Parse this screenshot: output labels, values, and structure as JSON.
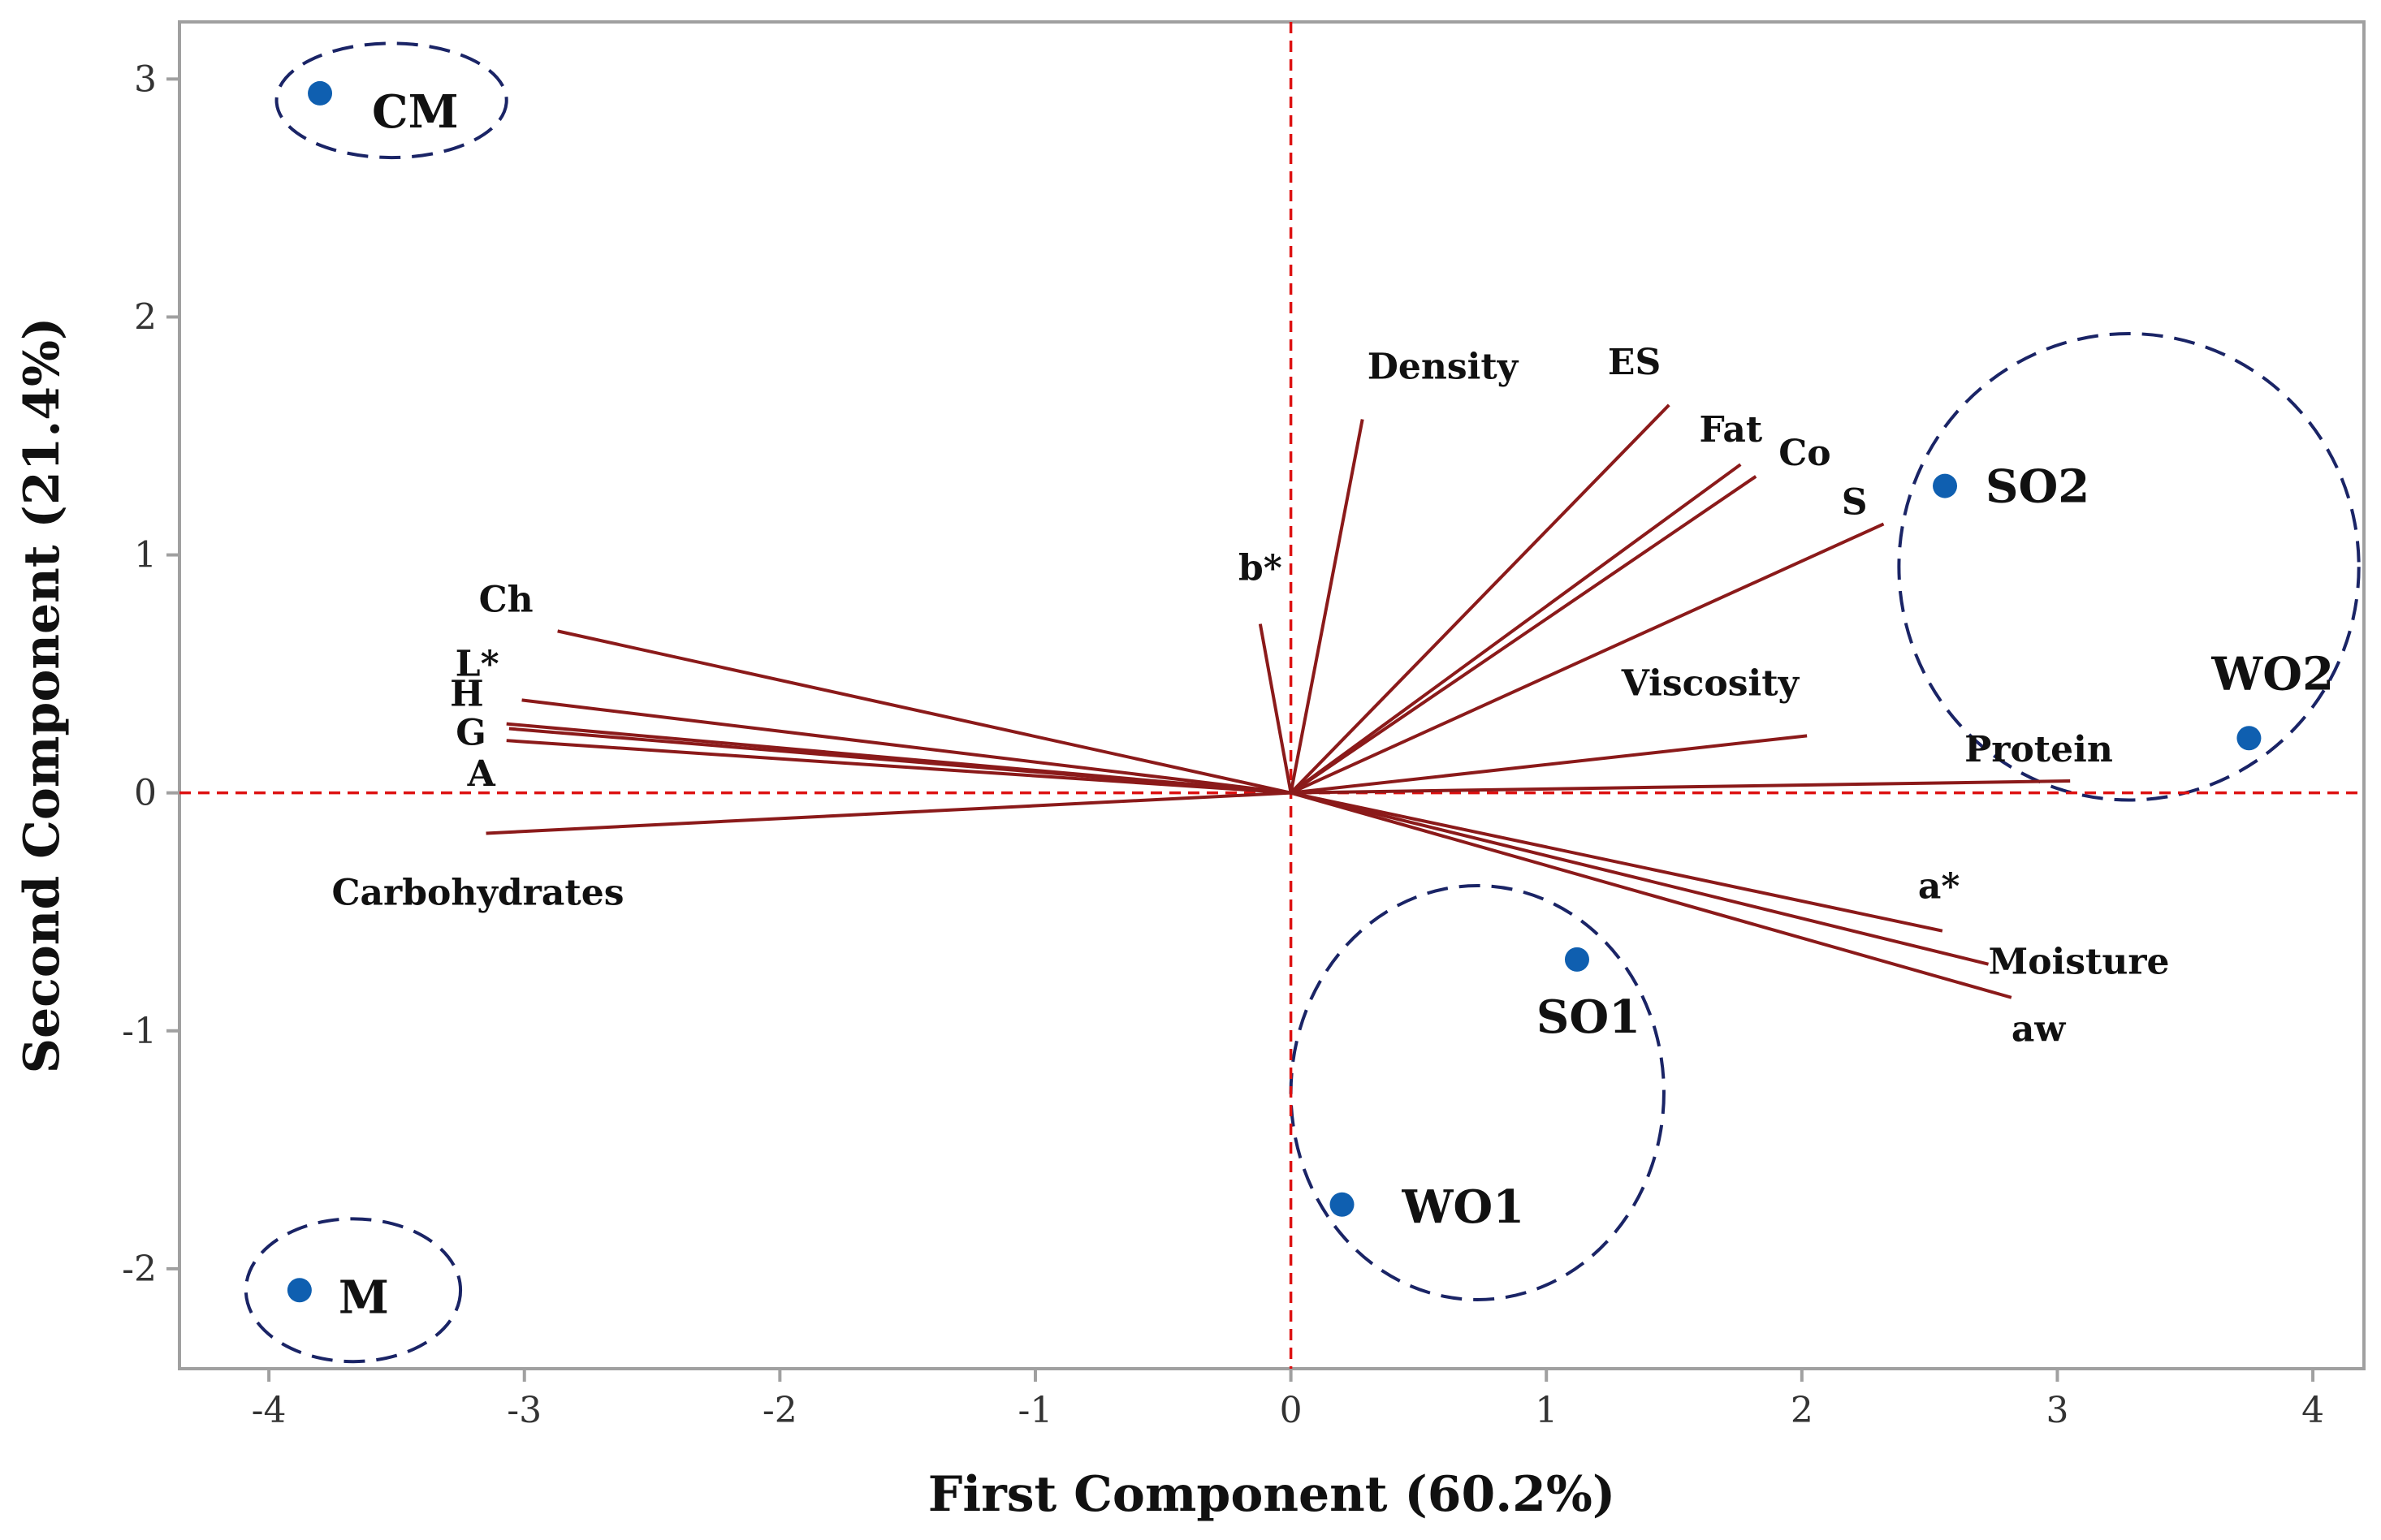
{
  "chart_data": {
    "type": "scatter",
    "subtype": "biplot",
    "xlabel": "First Component (60.2%)",
    "ylabel": "Second Component (21.4%)",
    "xlim": [
      -4.35,
      4.2
    ],
    "ylim": [
      -2.42,
      3.24
    ],
    "xticks": [
      -4,
      -3,
      -2,
      -1,
      0,
      1,
      2,
      3,
      4
    ],
    "yticks": [
      -2,
      -1,
      0,
      1,
      2,
      3
    ],
    "reference_lines": {
      "x": 0,
      "y": 0,
      "color": "#dd1111",
      "style": "dashed"
    },
    "colors": {
      "vector": "#8b1a1a",
      "point": "#0f5fb0",
      "ellipse": "#1a2466",
      "frame": "#a0a0a0"
    },
    "loadings": [
      {
        "name": "Density",
        "x": 0.28,
        "y": 1.57
      },
      {
        "name": "ES",
        "x": 1.48,
        "y": 1.63
      },
      {
        "name": "Fat",
        "x": 1.76,
        "y": 1.38
      },
      {
        "name": "Co",
        "x": 1.82,
        "y": 1.33
      },
      {
        "name": "S",
        "x": 2.32,
        "y": 1.13
      },
      {
        "name": "b*",
        "x": -0.12,
        "y": 0.71
      },
      {
        "name": "Ch",
        "x": -2.87,
        "y": 0.68
      },
      {
        "name": "L*",
        "x": -3.01,
        "y": 0.39
      },
      {
        "name": "H",
        "x": -3.07,
        "y": 0.29
      },
      {
        "name": "G",
        "x": -3.06,
        "y": 0.27
      },
      {
        "name": "A",
        "x": -3.07,
        "y": 0.22
      },
      {
        "name": "Carbohydrates",
        "x": -3.15,
        "y": -0.17
      },
      {
        "name": "Viscosity",
        "x": 2.02,
        "y": 0.24
      },
      {
        "name": "Protein",
        "x": 3.05,
        "y": 0.05
      },
      {
        "name": "a*",
        "x": 2.55,
        "y": -0.58
      },
      {
        "name": "Moisture",
        "x": 2.73,
        "y": -0.72
      },
      {
        "name": "aw",
        "x": 2.82,
        "y": -0.86
      }
    ],
    "scores": [
      {
        "name": "CM",
        "x": -3.8,
        "y": 2.94
      },
      {
        "name": "M",
        "x": -3.88,
        "y": -2.09
      },
      {
        "name": "SO1",
        "x": 1.12,
        "y": -0.7
      },
      {
        "name": "WO1",
        "x": 0.2,
        "y": -1.73
      },
      {
        "name": "SO2",
        "x": 2.56,
        "y": 1.29
      },
      {
        "name": "WO2",
        "x": 3.75,
        "y": 0.23
      }
    ],
    "groups": [
      {
        "members": [
          "CM"
        ],
        "cx": -3.52,
        "cy": 2.91,
        "rx": 0.45,
        "ry": 0.24
      },
      {
        "members": [
          "M"
        ],
        "cx": -3.67,
        "cy": -2.09,
        "rx": 0.42,
        "ry": 0.3
      },
      {
        "members": [
          "SO1",
          "WO1"
        ],
        "cx": 0.73,
        "cy": -1.26,
        "rx": 0.73,
        "ry": 0.87
      },
      {
        "members": [
          "SO2",
          "WO2"
        ],
        "cx": 3.28,
        "cy": 0.95,
        "rx": 0.9,
        "ry": 0.98
      }
    ]
  }
}
